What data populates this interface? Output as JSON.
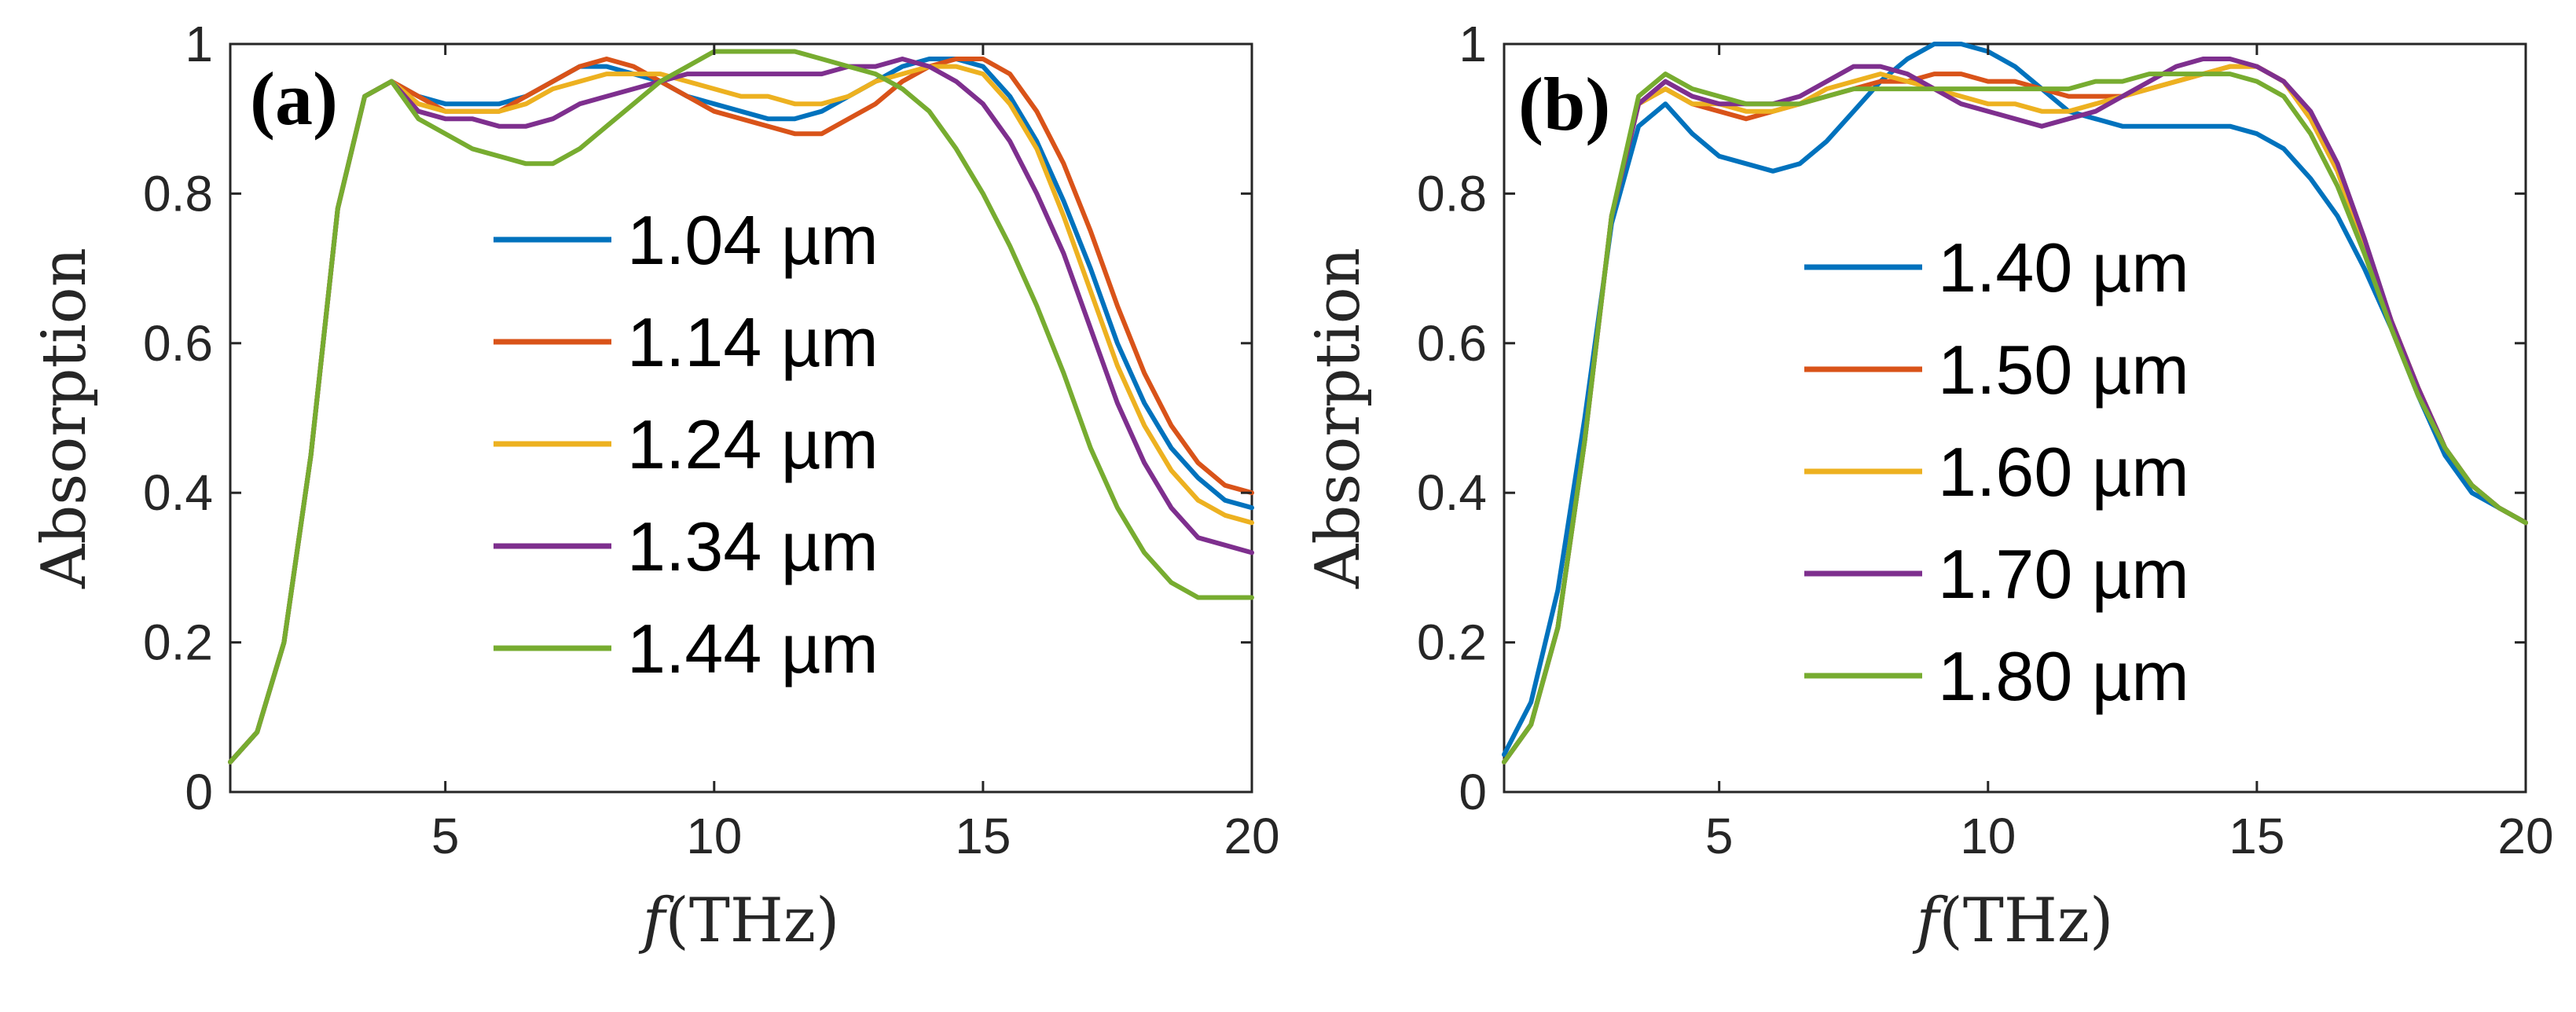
{
  "chart_data": [
    {
      "type": "line",
      "panel_label": "(a)",
      "xlabel_var": "f",
      "xlabel_unit": "(THz)",
      "ylabel": "Absorption",
      "xlim": [
        1,
        20
      ],
      "ylim": [
        0,
        1
      ],
      "xticks": [
        5,
        10,
        15,
        20
      ],
      "xtick_labels": [
        "5",
        "10",
        "15",
        "20"
      ],
      "yticks": [
        0,
        0.2,
        0.4,
        0.6,
        0.8,
        1
      ],
      "ytick_labels": [
        "0",
        "0.2",
        "0.4",
        "0.6",
        "0.8",
        "1"
      ],
      "grid": false,
      "legend_position": "center-left",
      "x": [
        1,
        1.5,
        2,
        2.5,
        3,
        3.5,
        4,
        4.5,
        5,
        5.5,
        6,
        6.5,
        7,
        7.5,
        8,
        8.5,
        9,
        9.5,
        10,
        10.5,
        11,
        11.5,
        12,
        12.5,
        13,
        13.5,
        14,
        14.5,
        15,
        15.5,
        16,
        16.5,
        17,
        17.5,
        18,
        18.5,
        19,
        19.5,
        20
      ],
      "series": [
        {
          "name": "1.04 µm",
          "color": "#0072BD",
          "values": [
            0.04,
            0.08,
            0.2,
            0.45,
            0.78,
            0.93,
            0.95,
            0.93,
            0.92,
            0.92,
            0.92,
            0.93,
            0.95,
            0.97,
            0.97,
            0.96,
            0.95,
            0.93,
            0.92,
            0.91,
            0.9,
            0.9,
            0.91,
            0.93,
            0.95,
            0.97,
            0.98,
            0.98,
            0.97,
            0.93,
            0.87,
            0.79,
            0.7,
            0.6,
            0.52,
            0.46,
            0.42,
            0.39,
            0.38
          ]
        },
        {
          "name": "1.14 µm",
          "color": "#D95319",
          "values": [
            0.04,
            0.08,
            0.2,
            0.45,
            0.78,
            0.93,
            0.95,
            0.93,
            0.91,
            0.91,
            0.91,
            0.93,
            0.95,
            0.97,
            0.98,
            0.97,
            0.95,
            0.93,
            0.91,
            0.9,
            0.89,
            0.88,
            0.88,
            0.9,
            0.92,
            0.95,
            0.97,
            0.98,
            0.98,
            0.96,
            0.91,
            0.84,
            0.75,
            0.65,
            0.56,
            0.49,
            0.44,
            0.41,
            0.4
          ]
        },
        {
          "name": "1.24 µm",
          "color": "#EDB120",
          "values": [
            0.04,
            0.08,
            0.2,
            0.45,
            0.78,
            0.93,
            0.95,
            0.92,
            0.91,
            0.91,
            0.91,
            0.92,
            0.94,
            0.95,
            0.96,
            0.96,
            0.96,
            0.95,
            0.94,
            0.93,
            0.93,
            0.92,
            0.92,
            0.93,
            0.95,
            0.96,
            0.97,
            0.97,
            0.96,
            0.92,
            0.86,
            0.77,
            0.67,
            0.57,
            0.49,
            0.43,
            0.39,
            0.37,
            0.36
          ]
        },
        {
          "name": "1.34 µm",
          "color": "#7E2F8E",
          "values": [
            0.04,
            0.08,
            0.2,
            0.45,
            0.78,
            0.93,
            0.95,
            0.91,
            0.9,
            0.9,
            0.89,
            0.89,
            0.9,
            0.92,
            0.93,
            0.94,
            0.95,
            0.96,
            0.96,
            0.96,
            0.96,
            0.96,
            0.96,
            0.97,
            0.97,
            0.98,
            0.97,
            0.95,
            0.92,
            0.87,
            0.8,
            0.72,
            0.62,
            0.52,
            0.44,
            0.38,
            0.34,
            0.33,
            0.32
          ]
        },
        {
          "name": "1.44 µm",
          "color": "#77AC30",
          "values": [
            0.04,
            0.08,
            0.2,
            0.45,
            0.78,
            0.93,
            0.95,
            0.9,
            0.88,
            0.86,
            0.85,
            0.84,
            0.84,
            0.86,
            0.89,
            0.92,
            0.95,
            0.97,
            0.99,
            0.99,
            0.99,
            0.99,
            0.98,
            0.97,
            0.96,
            0.94,
            0.91,
            0.86,
            0.8,
            0.73,
            0.65,
            0.56,
            0.46,
            0.38,
            0.32,
            0.28,
            0.26,
            0.26,
            0.26
          ]
        }
      ]
    },
    {
      "type": "line",
      "panel_label": "(b)",
      "xlabel_var": "f",
      "xlabel_unit": "(THz)",
      "ylabel": "Absorption",
      "xlim": [
        1,
        20
      ],
      "ylim": [
        0,
        1
      ],
      "xticks": [
        5,
        10,
        15,
        20
      ],
      "xtick_labels": [
        "5",
        "10",
        "15",
        "20"
      ],
      "yticks": [
        0,
        0.2,
        0.4,
        0.6,
        0.8,
        1
      ],
      "ytick_labels": [
        "0",
        "0.2",
        "0.4",
        "0.6",
        "0.8",
        "1"
      ],
      "grid": false,
      "legend_position": "center",
      "x": [
        1,
        1.5,
        2,
        2.5,
        3,
        3.5,
        4,
        4.5,
        5,
        5.5,
        6,
        6.5,
        7,
        7.5,
        8,
        8.5,
        9,
        9.5,
        10,
        10.5,
        11,
        11.5,
        12,
        12.5,
        13,
        13.5,
        14,
        14.5,
        15,
        15.5,
        16,
        16.5,
        17,
        17.5,
        18,
        18.5,
        19,
        19.5,
        20
      ],
      "series": [
        {
          "name": "1.40 µm",
          "color": "#0072BD",
          "values": [
            0.05,
            0.12,
            0.27,
            0.5,
            0.76,
            0.89,
            0.92,
            0.88,
            0.85,
            0.84,
            0.83,
            0.84,
            0.87,
            0.91,
            0.95,
            0.98,
            1.0,
            1.0,
            0.99,
            0.97,
            0.94,
            0.91,
            0.9,
            0.89,
            0.89,
            0.89,
            0.89,
            0.89,
            0.88,
            0.86,
            0.82,
            0.77,
            0.7,
            0.62,
            0.53,
            0.45,
            0.4,
            0.38,
            0.36
          ]
        },
        {
          "name": "1.50 µm",
          "color": "#D95319",
          "values": [
            0.04,
            0.09,
            0.22,
            0.47,
            0.77,
            0.92,
            0.94,
            0.92,
            0.91,
            0.9,
            0.91,
            0.92,
            0.93,
            0.94,
            0.95,
            0.95,
            0.96,
            0.96,
            0.95,
            0.95,
            0.94,
            0.93,
            0.93,
            0.93,
            0.94,
            0.95,
            0.96,
            0.97,
            0.97,
            0.95,
            0.9,
            0.83,
            0.73,
            0.63,
            0.54,
            0.46,
            0.41,
            0.38,
            0.36
          ]
        },
        {
          "name": "1.60 µm",
          "color": "#EDB120",
          "values": [
            0.04,
            0.09,
            0.22,
            0.47,
            0.77,
            0.92,
            0.94,
            0.92,
            0.92,
            0.91,
            0.91,
            0.92,
            0.94,
            0.95,
            0.96,
            0.95,
            0.94,
            0.93,
            0.92,
            0.92,
            0.91,
            0.91,
            0.92,
            0.93,
            0.94,
            0.95,
            0.96,
            0.97,
            0.97,
            0.95,
            0.9,
            0.83,
            0.73,
            0.63,
            0.54,
            0.46,
            0.41,
            0.38,
            0.36
          ]
        },
        {
          "name": "1.70 µm",
          "color": "#7E2F8E",
          "values": [
            0.04,
            0.09,
            0.22,
            0.47,
            0.77,
            0.92,
            0.95,
            0.93,
            0.92,
            0.92,
            0.92,
            0.93,
            0.95,
            0.97,
            0.97,
            0.96,
            0.94,
            0.92,
            0.91,
            0.9,
            0.89,
            0.9,
            0.91,
            0.93,
            0.95,
            0.97,
            0.98,
            0.98,
            0.97,
            0.95,
            0.91,
            0.84,
            0.74,
            0.63,
            0.54,
            0.46,
            0.41,
            0.38,
            0.36
          ]
        },
        {
          "name": "1.80 µm",
          "color": "#77AC30",
          "values": [
            0.04,
            0.09,
            0.22,
            0.47,
            0.77,
            0.93,
            0.96,
            0.94,
            0.93,
            0.92,
            0.92,
            0.92,
            0.93,
            0.94,
            0.94,
            0.94,
            0.94,
            0.94,
            0.94,
            0.94,
            0.94,
            0.94,
            0.95,
            0.95,
            0.96,
            0.96,
            0.96,
            0.96,
            0.95,
            0.93,
            0.88,
            0.81,
            0.72,
            0.62,
            0.53,
            0.46,
            0.41,
            0.38,
            0.36
          ]
        }
      ]
    }
  ]
}
